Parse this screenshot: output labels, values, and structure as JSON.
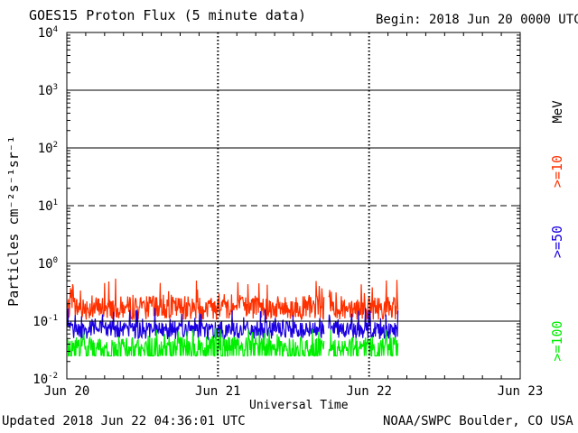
{
  "header": {
    "title": "GOES15 Proton Flux (5 minute data)",
    "begin": "Begin: 2018 Jun 20 0000 UTC"
  },
  "footer": {
    "updated": "Updated 2018 Jun 22 04:36:01 UTC",
    "credit": "NOAA/SWPC Boulder, CO USA"
  },
  "chart_data": {
    "type": "line",
    "title": "GOES15 Proton Flux (5 minute data)",
    "xlabel": "Universal Time",
    "ylabel": "Particles cm⁻²s⁻¹sr⁻¹",
    "yscale": "log",
    "ylim": [
      0.01,
      10000
    ],
    "xlim": [
      "2018-06-20 00:00",
      "2018-06-23 00:00"
    ],
    "x_ticks": [
      "Jun 20",
      "Jun 21",
      "Jun 22",
      "Jun 23"
    ],
    "y_ticks": [
      {
        "base": "10",
        "exp": "-2"
      },
      {
        "base": "10",
        "exp": "-1"
      },
      {
        "base": "10",
        "exp": "0"
      },
      {
        "base": "10",
        "exp": "1"
      },
      {
        "base": "10",
        "exp": "2"
      },
      {
        "base": "10",
        "exp": "3"
      },
      {
        "base": "10",
        "exp": "4"
      }
    ],
    "threshold": 10,
    "data_gaps": [
      [
        "2018-06-21 16:50",
        "2018-06-21 17:35"
      ]
    ],
    "data_end": "2018-06-22 04:35",
    "unit_label": "MeV",
    "series": [
      {
        "name": ">=10",
        "color": "#ff3000",
        "typical": 0.17,
        "range": [
          0.1,
          0.55
        ]
      },
      {
        "name": ">=50",
        "color": "#1a00e0",
        "typical": 0.07,
        "range": [
          0.045,
          0.17
        ]
      },
      {
        "name": ">=100",
        "color": "#00ee00",
        "typical": 0.04,
        "range": [
          0.025,
          0.075
        ]
      }
    ]
  }
}
